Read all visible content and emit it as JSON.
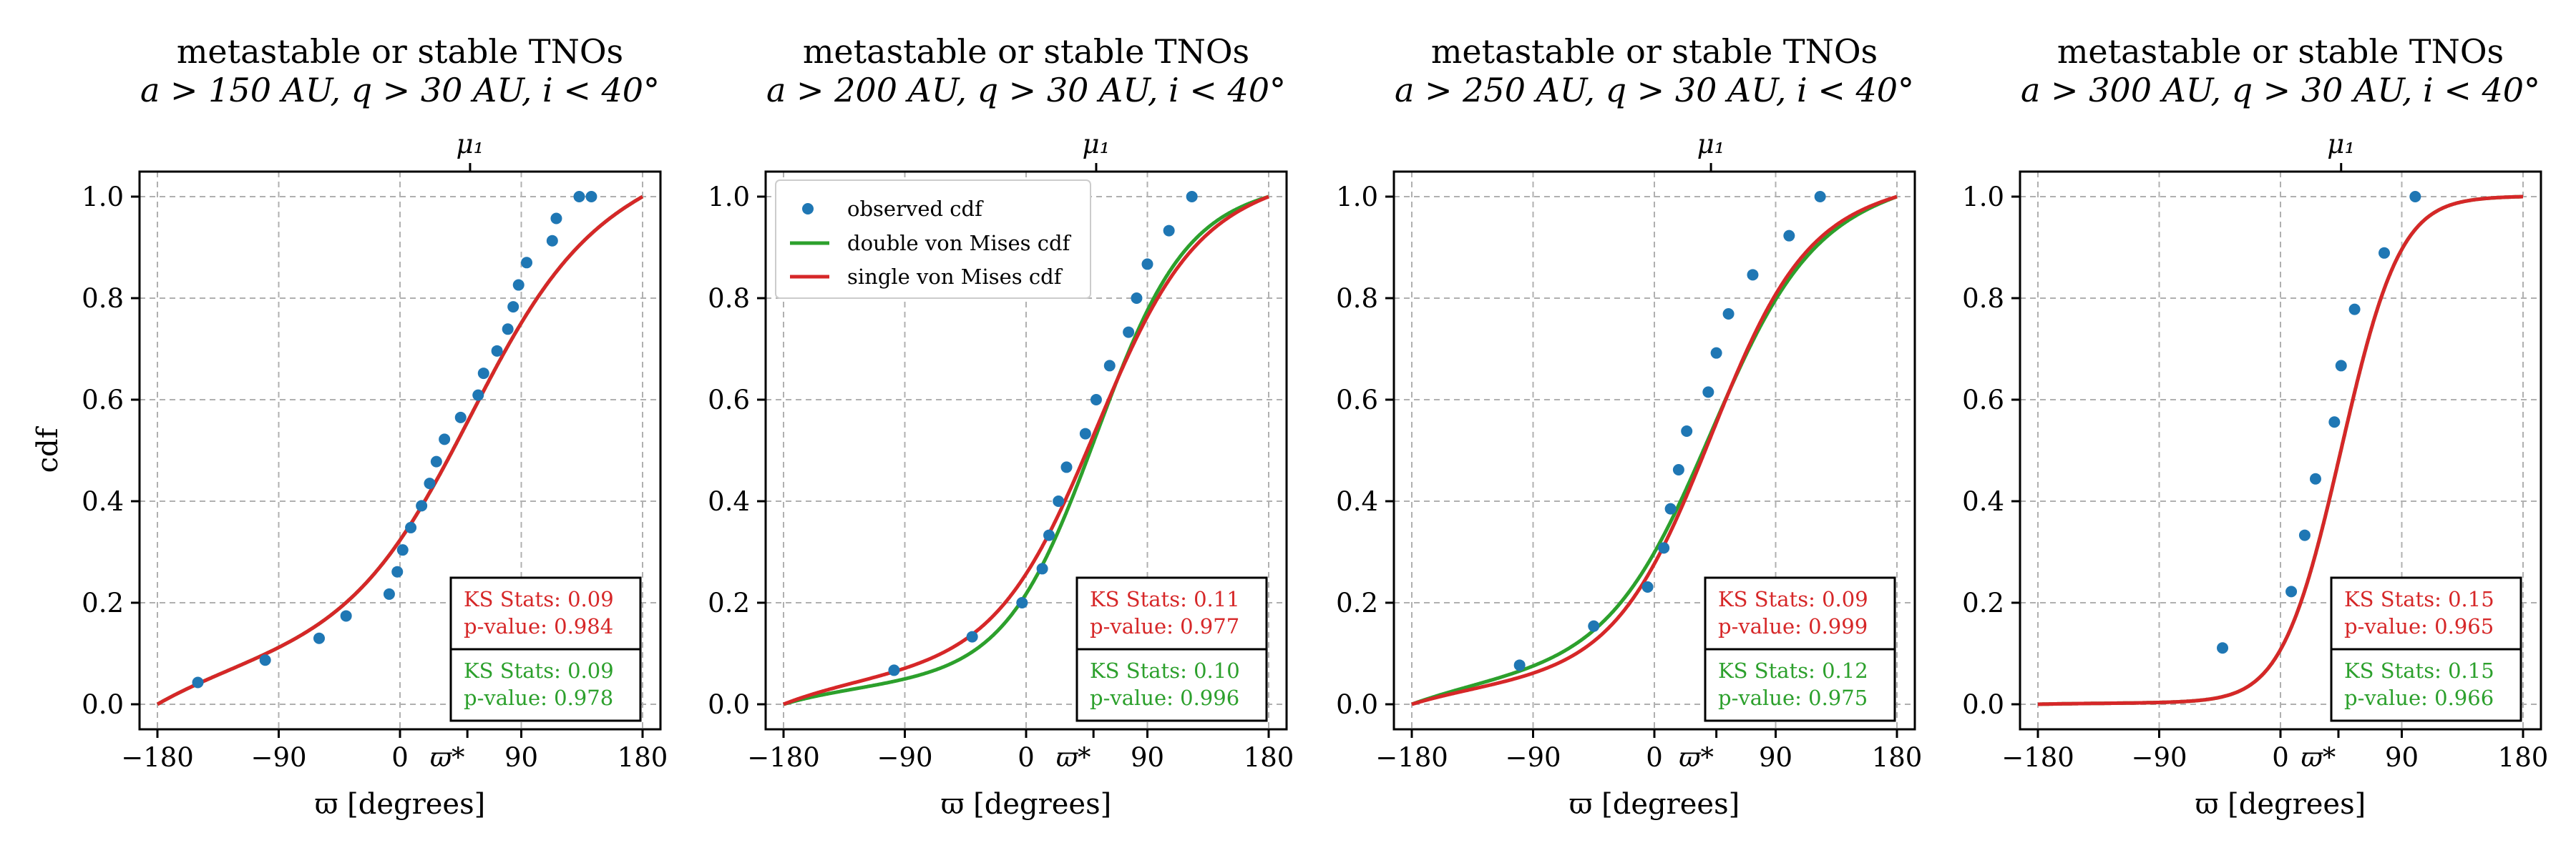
{
  "figure": {
    "ylabel": "cdf",
    "xlabel": "ϖ [degrees]",
    "x_ticks": [
      -180,
      -90,
      0,
      90,
      180
    ],
    "x_tick_labels": [
      "−180",
      "−90",
      "0",
      "90",
      "180"
    ],
    "y_ticks": [
      0.0,
      0.2,
      0.4,
      0.6,
      0.8,
      1.0
    ],
    "y_tick_labels": [
      "0.0",
      "0.2",
      "0.4",
      "0.6",
      "0.8",
      "1.0"
    ],
    "special_tick_label": "ϖ*",
    "top_tick_label": "μ₁",
    "legend": {
      "observed": "observed cdf",
      "double": "double von Mises cdf",
      "single": "single von Mises cdf"
    },
    "ks_label": "KS Stats:",
    "pvalue_label": "p-value:"
  },
  "colors": {
    "observed": "#1f77b4",
    "double": "#2ca02c",
    "single": "#d62728"
  },
  "chart_data": [
    {
      "type": "line",
      "title_line1": "metastable or stable TNOs",
      "title_line2": "a > 150 AU, q > 30 AU, i < 40°",
      "xlim": [
        -180,
        180
      ],
      "ylim": [
        0,
        1
      ],
      "mu1": 52,
      "varpi_star": 50,
      "single_kappa": 0.75,
      "double_kappa": 0.75,
      "show_legend": false,
      "observed": {
        "x": [
          -150,
          -100,
          -60,
          -40,
          -8,
          -2,
          2,
          8,
          16,
          22,
          27,
          33,
          45,
          58,
          62,
          72,
          80,
          84,
          88,
          94,
          113,
          116,
          133,
          142
        ],
        "y": [
          0.043,
          0.087,
          0.13,
          0.174,
          0.217,
          0.261,
          0.304,
          0.348,
          0.391,
          0.435,
          0.478,
          0.522,
          0.565,
          0.609,
          0.652,
          0.696,
          0.739,
          0.783,
          0.826,
          0.87,
          0.913,
          0.957,
          1.0,
          1.0
        ]
      },
      "ks_single": {
        "stat": "0.09",
        "p": "0.984"
      },
      "ks_double": {
        "stat": "0.09",
        "p": "0.978"
      }
    },
    {
      "type": "line",
      "title_line1": "metastable or stable TNOs",
      "title_line2": "a > 200 AU, q > 30 AU, i < 40°",
      "xlim": [
        -180,
        180
      ],
      "ylim": [
        0,
        1
      ],
      "mu1": 52,
      "varpi_star": 50,
      "single_kappa": 1.1,
      "double_kappa": 1.35,
      "show_legend": true,
      "observed": {
        "x": [
          -98,
          -40,
          -3,
          12,
          17,
          24,
          30,
          44,
          52,
          62,
          76,
          82,
          90,
          106,
          123
        ],
        "y": [
          0.067,
          0.133,
          0.2,
          0.267,
          0.333,
          0.4,
          0.467,
          0.533,
          0.6,
          0.667,
          0.733,
          0.8,
          0.867,
          0.933,
          1.0
        ]
      },
      "ks_single": {
        "stat": "0.11",
        "p": "0.977"
      },
      "ks_double": {
        "stat": "0.10",
        "p": "0.996"
      }
    },
    {
      "type": "line",
      "title_line1": "metastable or stable TNOs",
      "title_line2": "a > 250 AU, q > 30 AU, i < 40°",
      "xlim": [
        -180,
        180
      ],
      "ylim": [
        0,
        1
      ],
      "mu1": 42,
      "varpi_star": 46,
      "single_kappa": 1.2,
      "double_kappa": 1.05,
      "show_legend": false,
      "observed": {
        "x": [
          -100,
          -45,
          -5,
          7,
          12,
          18,
          24,
          40,
          46,
          55,
          73,
          100,
          123
        ],
        "y": [
          0.077,
          0.154,
          0.231,
          0.308,
          0.385,
          0.462,
          0.538,
          0.615,
          0.692,
          0.769,
          0.846,
          0.923,
          1.0
        ]
      },
      "ks_single": {
        "stat": "0.09",
        "p": "0.999"
      },
      "ks_double": {
        "stat": "0.12",
        "p": "0.975"
      }
    },
    {
      "type": "line",
      "title_line1": "metastable or stable TNOs",
      "title_line2": "a > 300 AU, q > 30 AU, i < 40°",
      "xlim": [
        -180,
        180
      ],
      "ylim": [
        0,
        1
      ],
      "mu1": 45,
      "varpi_star": 43,
      "single_kappa": 3.0,
      "double_kappa": 3.0,
      "show_legend": false,
      "observed": {
        "x": [
          -43,
          8,
          18,
          26,
          40,
          45,
          55,
          77,
          100
        ],
        "y": [
          0.111,
          0.222,
          0.333,
          0.444,
          0.556,
          0.667,
          0.778,
          0.889,
          1.0
        ]
      },
      "ks_single": {
        "stat": "0.15",
        "p": "0.965"
      },
      "ks_double": {
        "stat": "0.15",
        "p": "0.966"
      }
    }
  ]
}
